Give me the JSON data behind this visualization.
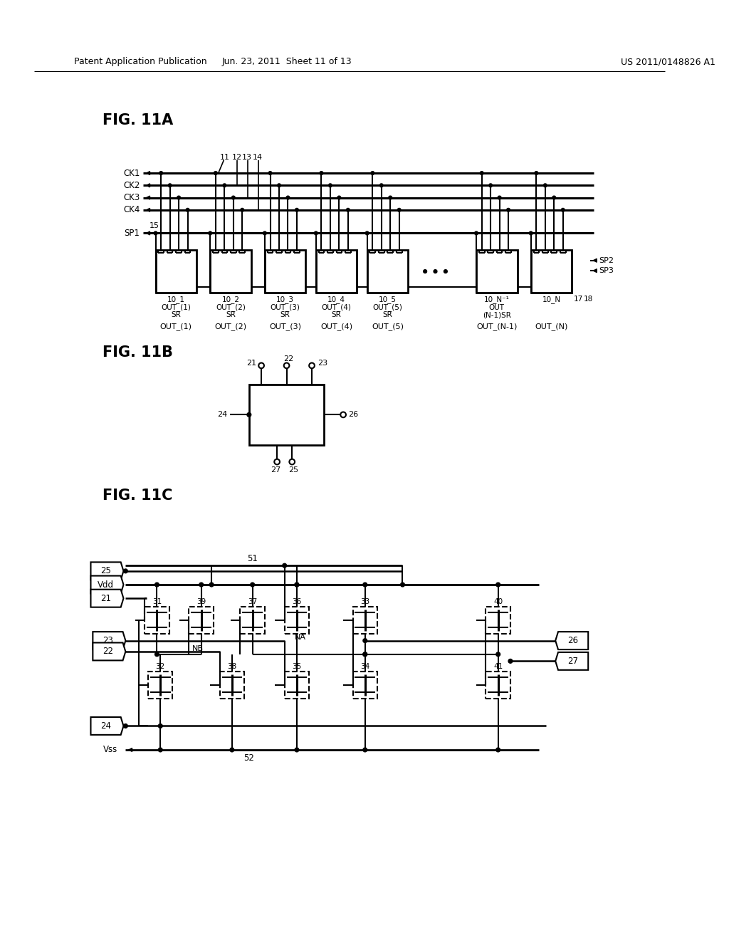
{
  "header_left": "Patent Application Publication",
  "header_mid": "Jun. 23, 2011  Sheet 11 of 13",
  "header_right": "US 2011/0148826 A1",
  "fig11a_label": "FIG. 11A",
  "fig11b_label": "FIG. 11B",
  "fig11c_label": "FIG. 11C",
  "bg_color": "#ffffff",
  "lc": "#000000"
}
